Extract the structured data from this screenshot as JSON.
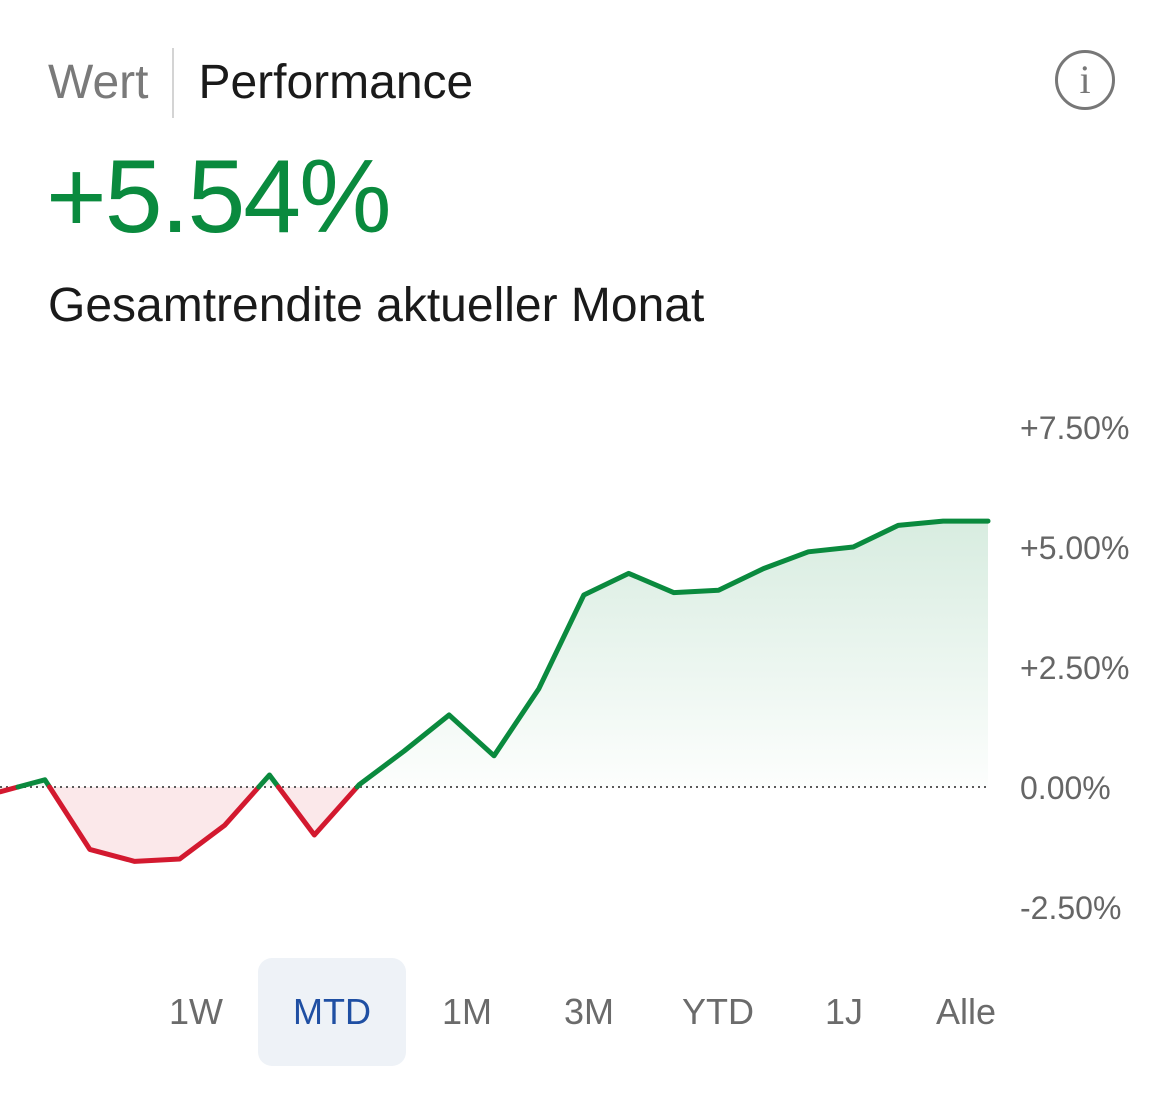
{
  "header": {
    "tab_wert": "Wert",
    "tab_performance": "Performance",
    "info_label": "i"
  },
  "summary": {
    "value": "+5.54%",
    "subtitle": "Gesamtrendite aktueller Monat"
  },
  "colors": {
    "positive": "#0a8a3e",
    "negative": "#d3192f",
    "selected_bg": "#eef2f7",
    "selected_text": "#1f4fa3"
  },
  "chart_data": {
    "type": "area",
    "x": [
      0,
      1,
      2,
      3,
      4,
      5,
      6,
      7,
      8,
      9,
      10,
      11,
      12,
      13,
      14,
      15,
      16,
      17,
      18,
      19,
      20,
      21,
      22
    ],
    "values": [
      -0.1,
      0.15,
      -1.3,
      -1.55,
      -1.5,
      -0.8,
      0.25,
      -1.0,
      0.05,
      0.75,
      1.5,
      0.65,
      2.05,
      4.0,
      4.45,
      4.05,
      4.1,
      4.55,
      4.9,
      5.0,
      5.45,
      5.54,
      5.54
    ],
    "ylim": [
      -2.5,
      7.5
    ],
    "y_ticks": [
      "+7.50%",
      "+5.00%",
      "+2.50%",
      "0.00%",
      "-2.50%"
    ],
    "y_tick_values": [
      7.5,
      5.0,
      2.5,
      0.0,
      -2.5
    ],
    "baseline": 0,
    "grid": false
  },
  "ranges": {
    "options": [
      "1W",
      "MTD",
      "1M",
      "3M",
      "YTD",
      "1J",
      "Alle"
    ],
    "selected": "MTD"
  }
}
